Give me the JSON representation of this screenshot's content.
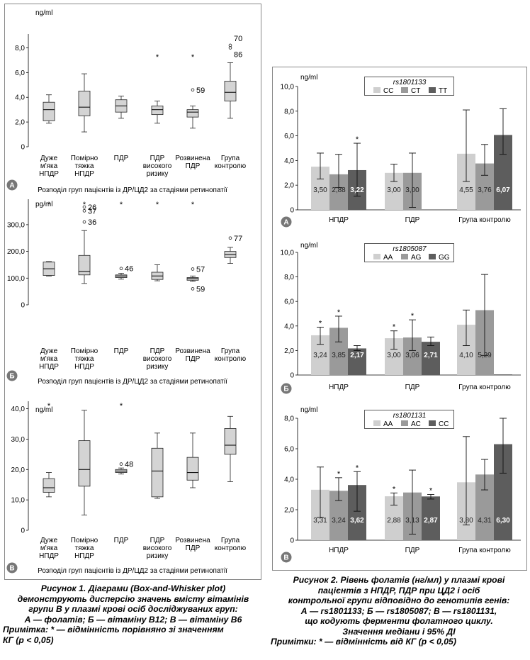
{
  "figure1": {
    "panels": [
      {
        "letter": "A",
        "unit": "ng/ml",
        "xlabel": "Розподіл груп пацієнтів із ДР/ЦД2 за стадіями ретинопатії",
        "ylim": [
          0,
          9
        ],
        "yticks": [
          "0",
          "2,0",
          "4,0",
          "6,0",
          "8,0"
        ],
        "ytick_values": [
          0,
          2,
          4,
          6,
          8
        ],
        "boxes": [
          {
            "min": 1.9,
            "q1": 2.1,
            "median": 3.0,
            "q3": 3.6,
            "max": 4.2
          },
          {
            "min": 1.2,
            "q1": 2.5,
            "median": 3.2,
            "q3": 4.5,
            "max": 5.9
          },
          {
            "min": 2.3,
            "q1": 2.8,
            "median": 3.3,
            "q3": 3.8,
            "max": 4.1
          },
          {
            "min": 1.9,
            "q1": 2.6,
            "median": 3.0,
            "q3": 3.3,
            "max": 3.7
          },
          {
            "min": 1.5,
            "q1": 2.4,
            "median": 2.8,
            "q3": 3.0,
            "max": 3.3
          },
          {
            "min": 2.3,
            "q1": 3.7,
            "median": 4.4,
            "q3": 5.3,
            "max": 6.8
          }
        ],
        "stars": [
          false,
          false,
          false,
          true,
          true,
          false
        ],
        "outliers": [
          {
            "group": 5,
            "value": 4.6,
            "label": "59"
          },
          {
            "group": 6,
            "value": 8.2,
            "label": "70"
          },
          {
            "group": 6,
            "value": 8.0,
            "label": "86"
          }
        ]
      },
      {
        "letter": "Б",
        "unit": "pg/ml",
        "xlabel": "Розподіл груп пацієнтів із ДР/ЦД2 за стадіями ретинопатії",
        "ylim": [
          0,
          390
        ],
        "yticks": [
          "0",
          "100,0",
          "200,0",
          "300,0"
        ],
        "ytick_values": [
          0,
          100,
          200,
          300
        ],
        "boxes": [
          {
            "min": 108,
            "q1": 110,
            "median": 135,
            "q3": 160,
            "max": 162
          },
          {
            "min": 80,
            "q1": 112,
            "median": 125,
            "q3": 185,
            "max": 278
          },
          {
            "min": 96,
            "q1": 102,
            "median": 108,
            "q3": 112,
            "max": 118
          },
          {
            "min": 90,
            "q1": 95,
            "median": 108,
            "q3": 122,
            "max": 150
          },
          {
            "min": 88,
            "q1": 92,
            "median": 98,
            "q3": 102,
            "max": 108
          },
          {
            "min": 155,
            "q1": 177,
            "median": 188,
            "q3": 200,
            "max": 215
          }
        ],
        "stars": [
          true,
          true,
          true,
          true,
          true,
          false
        ],
        "outliers": [
          {
            "group": 2,
            "value": 366,
            "label": "26"
          },
          {
            "group": 2,
            "value": 352,
            "label": "37"
          },
          {
            "group": 2,
            "value": 310,
            "label": "36"
          },
          {
            "group": 3,
            "value": 136,
            "label": "46"
          },
          {
            "group": 5,
            "value": 134,
            "label": "57"
          },
          {
            "group": 5,
            "value": 60,
            "label": "59"
          },
          {
            "group": 6,
            "value": 250,
            "label": "77"
          }
        ]
      },
      {
        "letter": "В",
        "unit": "ng/ml",
        "xlabel": "Розподіл груп пацієнтів із ДР/ЦД2 за стадіями ретинопатії",
        "ylim": [
          0,
          42
        ],
        "yticks": [
          "0",
          "10,0",
          "20,0",
          "30,0",
          "40,0"
        ],
        "ytick_values": [
          0,
          10,
          20,
          30,
          40
        ],
        "boxes": [
          {
            "min": 11,
            "q1": 12.5,
            "median": 14,
            "q3": 17,
            "max": 19
          },
          {
            "min": 5,
            "q1": 14.5,
            "median": 20,
            "q3": 29.5,
            "max": 39.5
          },
          {
            "min": 18.5,
            "q1": 19,
            "median": 19.5,
            "q3": 20,
            "max": 20.5
          },
          {
            "min": 10.5,
            "q1": 11,
            "median": 19.5,
            "q3": 27,
            "max": 32
          },
          {
            "min": 14,
            "q1": 16.5,
            "median": 19,
            "q3": 24,
            "max": 32
          },
          {
            "min": 16,
            "q1": 25,
            "median": 28,
            "q3": 33.5,
            "max": 37.5
          }
        ],
        "stars": [
          true,
          false,
          true,
          false,
          false,
          false
        ],
        "outliers": [
          {
            "group": 3,
            "value": 21.8,
            "label": "48"
          }
        ]
      }
    ],
    "groups": [
      [
        "Дуже",
        "м'яка",
        "НПДР"
      ],
      [
        "Помірно",
        "тяжка",
        "НПДР"
      ],
      [
        "ПДР"
      ],
      [
        "ПДР",
        "високого",
        "ризику"
      ],
      [
        "Розвинена",
        "ПДР"
      ],
      [
        "Група",
        "контролю"
      ]
    ],
    "caption": [
      "Рисунок 1. Діаграми (Box-and-Whisker plot)",
      "демонструють дисперсію значень вмісту вітамінів",
      "групи В у плазмі крові осіб досліджуваних груп:",
      "А — фолатів; Б — вітаміну В12; В — вітаміну В6",
      "Примітка: * — відмінність порівняно зі значенням",
      "КГ (р < 0,05)"
    ]
  },
  "figure2": {
    "groups": [
      "НПДР",
      "ПДР",
      "Група контролю"
    ],
    "colors": [
      "#cfcfcf",
      "#9a9a9a",
      "#5d5d5d"
    ],
    "panels": [
      {
        "letter": "A",
        "unit": "ng/ml",
        "legend_title": "rs1801133",
        "legend": [
          "CC",
          "CT",
          "TT"
        ],
        "ylim": [
          0,
          10
        ],
        "yticks": [
          "0",
          "2,0",
          "4,0",
          "6,0",
          "8,0",
          "10,0"
        ],
        "ytick_values": [
          0,
          2,
          4,
          6,
          8,
          10
        ],
        "bars": [
          [
            {
              "v": 3.5,
              "label": "3,50",
              "lo": 2.5,
              "hi": 4.6,
              "star": false
            },
            {
              "v": 2.88,
              "label": "2,88",
              "lo": 1.8,
              "hi": 4.5,
              "star": false
            },
            {
              "v": 3.22,
              "label": "3,22",
              "lo": 1.1,
              "hi": 5.4,
              "star": true
            }
          ],
          [
            {
              "v": 3.0,
              "label": "3,00",
              "lo": 2.3,
              "hi": 3.7,
              "star": false
            },
            {
              "v": 3.0,
              "label": "3,00",
              "lo": 0.2,
              "hi": 4.6,
              "star": false
            },
            null
          ],
          [
            {
              "v": 4.55,
              "label": "4,55",
              "lo": 2.3,
              "hi": 8.1,
              "star": false
            },
            {
              "v": 3.76,
              "label": "3,76",
              "lo": 2.8,
              "hi": 5.3,
              "star": false
            },
            {
              "v": 6.07,
              "label": "6,07",
              "lo": 4.5,
              "hi": 8.2,
              "star": false
            }
          ]
        ]
      },
      {
        "letter": "Б",
        "unit": "ng/ml",
        "legend_title": "rs1805087",
        "legend": [
          "AA",
          "AG",
          "GG"
        ],
        "ylim": [
          0,
          10
        ],
        "yticks": [
          "0",
          "2,0",
          "4,0",
          "6,0",
          "8,0",
          "10,0"
        ],
        "ytick_values": [
          0,
          2,
          4,
          6,
          8,
          10
        ],
        "bars": [
          [
            {
              "v": 3.24,
              "label": "3,24",
              "lo": 2.5,
              "hi": 3.9,
              "star": true
            },
            {
              "v": 3.85,
              "label": "3,85",
              "lo": 2.7,
              "hi": 4.8,
              "star": true
            },
            {
              "v": 2.17,
              "label": "2,17",
              "lo": 2.0,
              "hi": 2.4,
              "star": false
            }
          ],
          [
            {
              "v": 3.0,
              "label": "3,00",
              "lo": 2.1,
              "hi": 3.6,
              "star": true
            },
            {
              "v": 3.06,
              "label": "3,06",
              "lo": 2.0,
              "hi": 4.5,
              "star": true
            },
            {
              "v": 2.71,
              "label": "2,71",
              "lo": 2.4,
              "hi": 3.1,
              "star": false
            }
          ],
          [
            {
              "v": 4.1,
              "label": "4,10",
              "lo": 2.4,
              "hi": 5.3,
              "star": false
            },
            {
              "v": 5.29,
              "label": "5,29",
              "lo": 1.6,
              "hi": 8.2,
              "star": false
            },
            {
              "v": 0.05,
              "label": "",
              "lo": null,
              "hi": null,
              "star": false
            }
          ]
        ]
      },
      {
        "letter": "В",
        "unit": "ng/ml",
        "legend_title": "rs1801131",
        "legend": [
          "AA",
          "AC",
          "CC"
        ],
        "ylim": [
          0,
          8
        ],
        "yticks": [
          "0",
          "2,0",
          "4,0",
          "6,0",
          "8,0"
        ],
        "ytick_values": [
          0,
          2,
          4,
          6,
          8
        ],
        "bars": [
          [
            {
              "v": 3.31,
              "label": "3,31",
              "lo": 1.5,
              "hi": 4.8,
              "star": false
            },
            {
              "v": 3.24,
              "label": "3,24",
              "lo": 2.6,
              "hi": 4.1,
              "star": true
            },
            {
              "v": 3.62,
              "label": "3,62",
              "lo": 1.9,
              "hi": 4.5,
              "star": true
            }
          ],
          [
            {
              "v": 2.88,
              "label": "2,88",
              "lo": 2.3,
              "hi": 3.1,
              "star": true
            },
            {
              "v": 3.13,
              "label": "3,13",
              "lo": 0.4,
              "hi": 4.6,
              "star": false
            },
            {
              "v": 2.87,
              "label": "2,87",
              "lo": 2.7,
              "hi": 3.0,
              "star": true
            }
          ],
          [
            {
              "v": 3.8,
              "label": "3,80",
              "lo": 1.0,
              "hi": 6.8,
              "star": false
            },
            {
              "v": 4.31,
              "label": "4,31",
              "lo": 3.3,
              "hi": 5.3,
              "star": false
            },
            {
              "v": 6.3,
              "label": "6,30",
              "lo": 4.4,
              "hi": 8.0,
              "star": false
            }
          ]
        ]
      }
    ],
    "caption": [
      "Рисунок 2. Рівень фолатів (нг/мл) у плазмі крові",
      "пацієнтів з НПДР, ПДР при ЦД2 і осіб",
      "контрольної групи відповідно до генотипів генів:",
      "А — rs1801133; Б — rs1805087; В — rs1801131,",
      "що кодують ферменти фолатного циклу.",
      "Значення медіани і 95% ДІ",
      "Примітки: * — відмінність від КГ (р < 0,05)"
    ]
  },
  "chart_data": [
    {
      "type": "box",
      "title": "",
      "ylabel": "ng/ml",
      "xlabel": "Розподіл груп пацієнтів із ДР/ЦД2 за стадіями ретинопатії",
      "categories": [
        "Дуже м'яка НПДР",
        "Помірно тяжка НПДР",
        "ПДР",
        "ПДР високого ризику",
        "Розвинена ПДР",
        "Група контролю"
      ],
      "medians": [
        3.0,
        3.2,
        3.3,
        3.0,
        2.8,
        4.4
      ],
      "ylim": [
        0,
        9
      ]
    },
    {
      "type": "box",
      "title": "",
      "ylabel": "pg/ml",
      "xlabel": "Розподіл груп пацієнтів із ДР/ЦД2 за стадіями ретинопатії",
      "categories": [
        "Дуже м'яка НПДР",
        "Помірно тяжка НПДР",
        "ПДР",
        "ПДР високого ризику",
        "Розвинена ПДР",
        "Група контролю"
      ],
      "medians": [
        135,
        125,
        108,
        108,
        98,
        188
      ],
      "ylim": [
        0,
        390
      ]
    },
    {
      "type": "box",
      "title": "",
      "ylabel": "ng/ml",
      "xlabel": "Розподіл груп пацієнтів із ДР/ЦД2 за стадіями ретинопатії",
      "categories": [
        "Дуже м'яка НПДР",
        "Помірно тяжка НПДР",
        "ПДР",
        "ПДР високого ризику",
        "Розвинена ПДР",
        "Група контролю"
      ],
      "medians": [
        14,
        20,
        19.5,
        19.5,
        19,
        28
      ],
      "ylim": [
        0,
        42
      ]
    },
    {
      "type": "bar",
      "title": "rs1801133",
      "ylabel": "ng/ml",
      "categories": [
        "НПДР",
        "ПДР",
        "Група контролю"
      ],
      "series": [
        {
          "name": "CC",
          "values": [
            3.5,
            3.0,
            4.55
          ]
        },
        {
          "name": "CT",
          "values": [
            2.88,
            3.0,
            3.76
          ]
        },
        {
          "name": "TT",
          "values": [
            3.22,
            null,
            6.07
          ]
        }
      ],
      "ylim": [
        0,
        10
      ]
    },
    {
      "type": "bar",
      "title": "rs1805087",
      "ylabel": "ng/ml",
      "categories": [
        "НПДР",
        "ПДР",
        "Група контролю"
      ],
      "series": [
        {
          "name": "AA",
          "values": [
            3.24,
            3.0,
            4.1
          ]
        },
        {
          "name": "AG",
          "values": [
            3.85,
            3.06,
            5.29
          ]
        },
        {
          "name": "GG",
          "values": [
            2.17,
            2.71,
            null
          ]
        }
      ],
      "ylim": [
        0,
        10
      ]
    },
    {
      "type": "bar",
      "title": "rs1801131",
      "ylabel": "ng/ml",
      "categories": [
        "НПДР",
        "ПДР",
        "Група контролю"
      ],
      "series": [
        {
          "name": "AA",
          "values": [
            3.31,
            2.88,
            3.8
          ]
        },
        {
          "name": "AC",
          "values": [
            3.24,
            3.13,
            4.31
          ]
        },
        {
          "name": "CC",
          "values": [
            3.62,
            2.87,
            6.3
          ]
        }
      ],
      "ylim": [
        0,
        8
      ]
    }
  ]
}
